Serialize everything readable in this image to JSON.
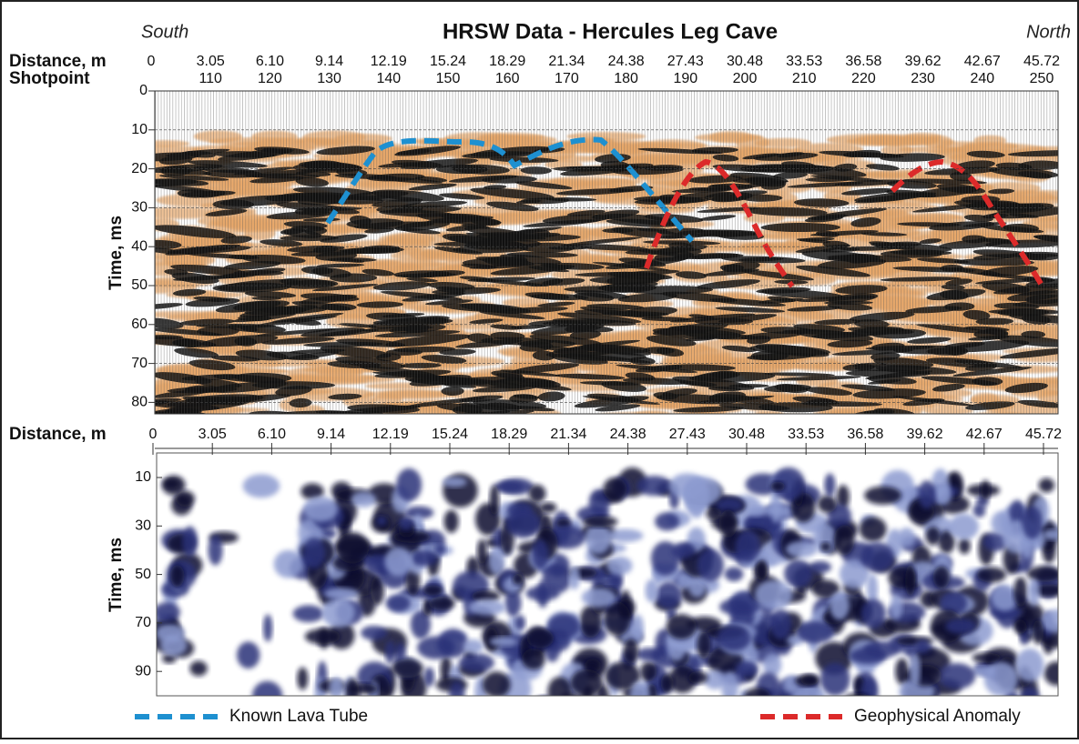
{
  "title": "HRSW Data - Hercules Leg Cave",
  "left_label": "South",
  "right_label": "North",
  "top_panel": {
    "distance_label": "Distance, m",
    "distance_ticks": [
      "0",
      "3.05",
      "6.10",
      "9.14",
      "12.19",
      "15.24",
      "18.29",
      "21.34",
      "24.38",
      "27.43",
      "30.48",
      "33.53",
      "36.58",
      "39.62",
      "42.67",
      "45.72"
    ],
    "shotpoint_label": "Shotpoint",
    "shotpoint_ticks": [
      "110",
      "120",
      "130",
      "140",
      "150",
      "160",
      "170",
      "180",
      "190",
      "200",
      "210",
      "220",
      "230",
      "240",
      "250"
    ],
    "y_label": "Time, ms",
    "y_ticks": [
      "0",
      "10",
      "20",
      "30",
      "40",
      "50",
      "60",
      "70",
      "80"
    ]
  },
  "bottom_panel": {
    "distance_label": "Distance, m",
    "distance_ticks": [
      "0",
      "3.05",
      "6.10",
      "9.14",
      "12.19",
      "15.24",
      "18.29",
      "21.34",
      "24.38",
      "27.43",
      "30.48",
      "33.53",
      "36.58",
      "39.62",
      "42.67",
      "45.72"
    ],
    "y_label": "Time, ms",
    "y_ticks": [
      "10",
      "30",
      "50",
      "70",
      "90"
    ]
  },
  "legend": [
    {
      "label": "Known Lava Tube"
    },
    {
      "label": "Geophysical Anomaly"
    }
  ]
}
